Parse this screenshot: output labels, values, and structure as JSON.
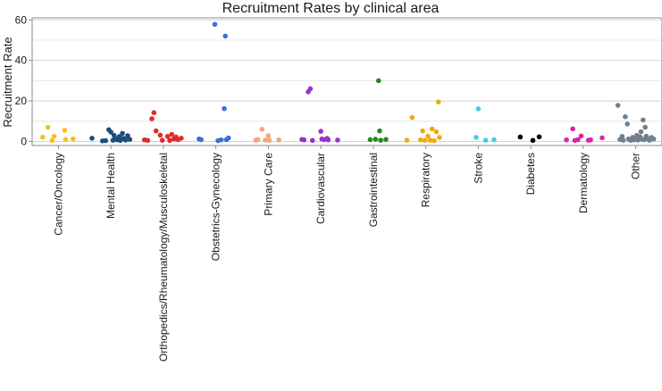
{
  "chart_data": {
    "type": "scatter",
    "title": "Recruitment Rates by clinical area",
    "xlabel": "",
    "ylabel": "Recruitment Rate",
    "ylim": [
      -2,
      61
    ],
    "yticks": [
      0,
      20,
      40,
      60
    ],
    "grid": true,
    "legend": "none",
    "categories": [
      "Cancer/Oncology",
      "Mental Health",
      "Orthopedics/Rheumatology/Musculoskeletal",
      "Obstetrics-Gynecology",
      "Primary Care",
      "Cardiovascular",
      "Gastrointestinal",
      "Respiratory",
      "Stroke",
      "Diabetes",
      "Dermatology",
      "Other"
    ],
    "series": [
      {
        "name": "Cancer/Oncology",
        "color": "#F5C02A",
        "points": [
          {
            "x": -0.3,
            "y": 2.1
          },
          {
            "x": -0.2,
            "y": 7.0
          },
          {
            "x": -0.12,
            "y": 0.5
          },
          {
            "x": -0.08,
            "y": 2.6
          },
          {
            "x": 0.12,
            "y": 5.5
          },
          {
            "x": 0.14,
            "y": 1.0
          },
          {
            "x": 0.28,
            "y": 1.3
          }
        ]
      },
      {
        "name": "Mental Health",
        "color": "#1B4F7A",
        "points": [
          {
            "x": -0.36,
            "y": 1.6
          },
          {
            "x": -0.16,
            "y": 0.3
          },
          {
            "x": -0.1,
            "y": 0.4
          },
          {
            "x": -0.04,
            "y": 5.8
          },
          {
            "x": 0.0,
            "y": 4.6
          },
          {
            "x": 0.04,
            "y": 0.6
          },
          {
            "x": 0.06,
            "y": 3.0
          },
          {
            "x": 0.1,
            "y": 1.2
          },
          {
            "x": 0.12,
            "y": 0.8
          },
          {
            "x": 0.16,
            "y": 2.4
          },
          {
            "x": 0.18,
            "y": 0.5
          },
          {
            "x": 0.22,
            "y": 4.0
          },
          {
            "x": 0.24,
            "y": 1.5
          },
          {
            "x": 0.28,
            "y": 0.7
          },
          {
            "x": 0.32,
            "y": 2.8
          },
          {
            "x": 0.36,
            "y": 1.0
          }
        ]
      },
      {
        "name": "Orthopedics/Rheumatology/Musculoskeletal",
        "color": "#E02B2B",
        "points": [
          {
            "x": -0.36,
            "y": 0.8
          },
          {
            "x": -0.3,
            "y": 0.5
          },
          {
            "x": -0.22,
            "y": 11.2
          },
          {
            "x": -0.18,
            "y": 14.2
          },
          {
            "x": -0.14,
            "y": 5.2
          },
          {
            "x": -0.06,
            "y": 3.1
          },
          {
            "x": -0.02,
            "y": 0.6
          },
          {
            "x": 0.08,
            "y": 2.5
          },
          {
            "x": 0.12,
            "y": 0.5
          },
          {
            "x": 0.16,
            "y": 3.5
          },
          {
            "x": 0.2,
            "y": 1.2
          },
          {
            "x": 0.24,
            "y": 2.2
          },
          {
            "x": 0.28,
            "y": 0.9
          },
          {
            "x": 0.34,
            "y": 1.6
          }
        ]
      },
      {
        "name": "Obstetrics-Gynecology",
        "color": "#3A6FD8",
        "points": [
          {
            "x": -0.32,
            "y": 1.2
          },
          {
            "x": -0.28,
            "y": 0.9
          },
          {
            "x": -0.02,
            "y": 57.8
          },
          {
            "x": 0.04,
            "y": 0.4
          },
          {
            "x": 0.1,
            "y": 0.8
          },
          {
            "x": 0.16,
            "y": 16.2
          },
          {
            "x": 0.18,
            "y": 52.0
          },
          {
            "x": 0.2,
            "y": 0.9
          },
          {
            "x": 0.24,
            "y": 1.7
          }
        ]
      },
      {
        "name": "Primary Care",
        "color": "#F4A582",
        "points": [
          {
            "x": -0.24,
            "y": 0.6
          },
          {
            "x": -0.2,
            "y": 1.0
          },
          {
            "x": -0.12,
            "y": 6.0
          },
          {
            "x": -0.06,
            "y": 0.7
          },
          {
            "x": 0.0,
            "y": 2.8
          },
          {
            "x": 0.02,
            "y": 0.5
          },
          {
            "x": 0.2,
            "y": 0.8
          }
        ]
      },
      {
        "name": "Cardiovascular",
        "color": "#9932CC",
        "points": [
          {
            "x": -0.36,
            "y": 1.0
          },
          {
            "x": -0.32,
            "y": 0.8
          },
          {
            "x": -0.24,
            "y": 24.5
          },
          {
            "x": -0.2,
            "y": 26.0
          },
          {
            "x": -0.16,
            "y": 0.5
          },
          {
            "x": 0.0,
            "y": 5.0
          },
          {
            "x": 0.02,
            "y": 1.2
          },
          {
            "x": 0.06,
            "y": 0.9
          },
          {
            "x": 0.12,
            "y": 1.5
          },
          {
            "x": 0.14,
            "y": 0.8
          },
          {
            "x": 0.32,
            "y": 0.7
          }
        ]
      },
      {
        "name": "Gastrointestinal",
        "color": "#228B22",
        "points": [
          {
            "x": -0.06,
            "y": 0.9
          },
          {
            "x": 0.04,
            "y": 1.1
          },
          {
            "x": 0.1,
            "y": 30.0
          },
          {
            "x": 0.12,
            "y": 5.2
          },
          {
            "x": 0.14,
            "y": 0.6
          },
          {
            "x": 0.24,
            "y": 1.0
          }
        ]
      },
      {
        "name": "Respiratory",
        "color": "#F0A81A",
        "points": [
          {
            "x": -0.36,
            "y": 0.6
          },
          {
            "x": -0.26,
            "y": 11.8
          },
          {
            "x": -0.1,
            "y": 0.8
          },
          {
            "x": -0.06,
            "y": 5.2
          },
          {
            "x": -0.02,
            "y": 0.5
          },
          {
            "x": 0.04,
            "y": 2.6
          },
          {
            "x": 0.08,
            "y": 0.6
          },
          {
            "x": 0.12,
            "y": 6.2
          },
          {
            "x": 0.16,
            "y": 0.4
          },
          {
            "x": 0.2,
            "y": 4.8
          },
          {
            "x": 0.24,
            "y": 19.5
          },
          {
            "x": 0.26,
            "y": 2.0
          }
        ]
      },
      {
        "name": "Stroke",
        "color": "#40D0E0",
        "points": [
          {
            "x": -0.04,
            "y": 2.0
          },
          {
            "x": 0.0,
            "y": 16.1
          },
          {
            "x": 0.14,
            "y": 0.6
          },
          {
            "x": 0.3,
            "y": 0.9
          }
        ]
      },
      {
        "name": "Diabetes",
        "color": "#000000",
        "points": [
          {
            "x": -0.2,
            "y": 2.2
          },
          {
            "x": 0.04,
            "y": 0.5
          },
          {
            "x": 0.16,
            "y": 2.3
          }
        ]
      },
      {
        "name": "Dermatology",
        "color": "#E020A8",
        "points": [
          {
            "x": -0.32,
            "y": 0.8
          },
          {
            "x": -0.2,
            "y": 6.2
          },
          {
            "x": -0.16,
            "y": 0.5
          },
          {
            "x": -0.1,
            "y": 0.9
          },
          {
            "x": -0.04,
            "y": 2.7
          },
          {
            "x": 0.1,
            "y": 0.6
          },
          {
            "x": 0.14,
            "y": 0.8
          },
          {
            "x": 0.36,
            "y": 1.8
          }
        ]
      },
      {
        "name": "Other",
        "color": "#708090",
        "points": [
          {
            "x": -0.34,
            "y": 17.8
          },
          {
            "x": -0.3,
            "y": 1.0
          },
          {
            "x": -0.26,
            "y": 2.5
          },
          {
            "x": -0.24,
            "y": 0.6
          },
          {
            "x": -0.2,
            "y": 12.2
          },
          {
            "x": -0.16,
            "y": 8.6
          },
          {
            "x": -0.14,
            "y": 1.2
          },
          {
            "x": -0.1,
            "y": 0.5
          },
          {
            "x": -0.06,
            "y": 2.0
          },
          {
            "x": -0.04,
            "y": 0.8
          },
          {
            "x": 0.0,
            "y": 1.5
          },
          {
            "x": 0.02,
            "y": 3.0
          },
          {
            "x": 0.04,
            "y": 0.7
          },
          {
            "x": 0.08,
            "y": 2.3
          },
          {
            "x": 0.1,
            "y": 4.8
          },
          {
            "x": 0.12,
            "y": 1.1
          },
          {
            "x": 0.14,
            "y": 10.6
          },
          {
            "x": 0.16,
            "y": 0.9
          },
          {
            "x": 0.18,
            "y": 7.0
          },
          {
            "x": 0.2,
            "y": 2.6
          },
          {
            "x": 0.22,
            "y": 1.4
          },
          {
            "x": 0.26,
            "y": 0.6
          },
          {
            "x": 0.3,
            "y": 2.0
          },
          {
            "x": 0.34,
            "y": 1.2
          }
        ]
      }
    ]
  }
}
